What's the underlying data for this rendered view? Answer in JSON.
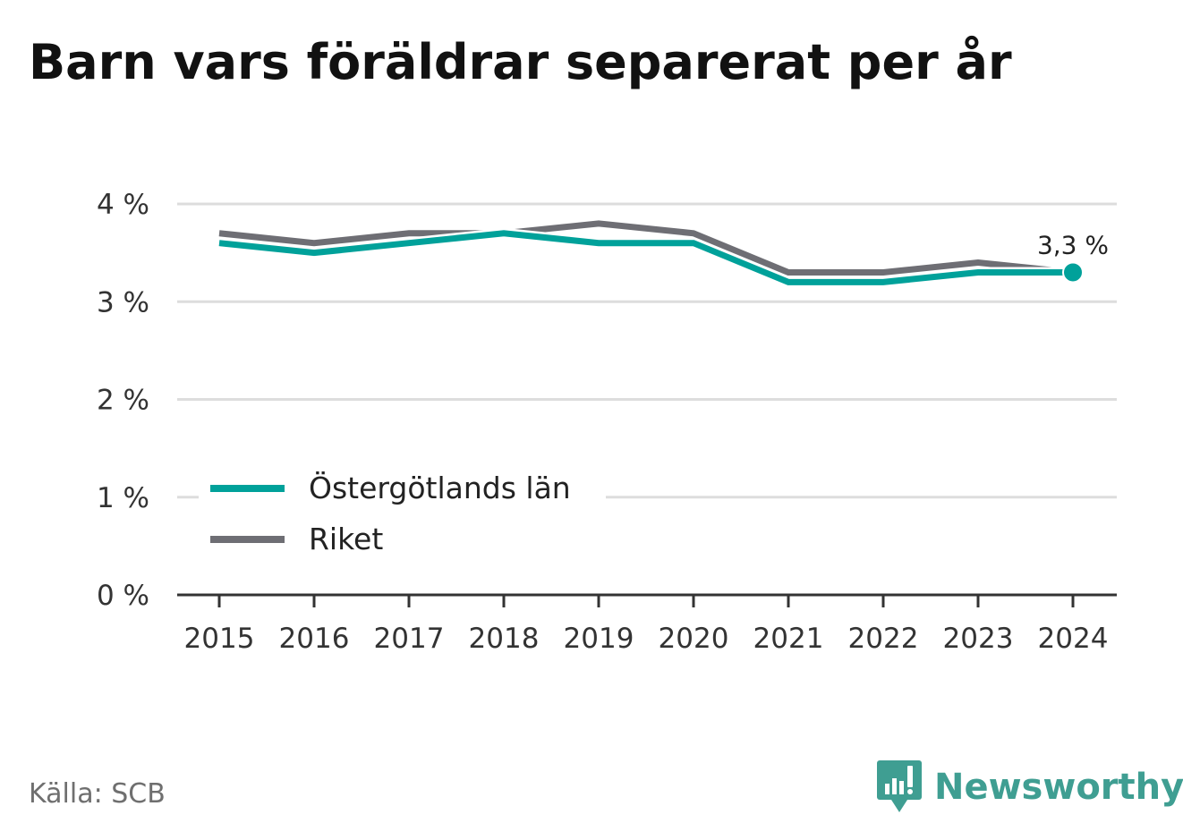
{
  "title": "Barn vars föräldrar separerat per år",
  "source": "Källa: SCB",
  "brand": {
    "name": "Newsworthy",
    "icon": "newsworthy-chart-icon",
    "color": "#3f9e92"
  },
  "colors": {
    "primary": "#00a19a",
    "secondary": "#6e6e74",
    "grid": "#dddddd",
    "axis": "#333333",
    "text": "#333333"
  },
  "chart_data": {
    "type": "line",
    "title": "Barn vars föräldrar separerat per år",
    "x": [
      "2015",
      "2016",
      "2017",
      "2018",
      "2019",
      "2020",
      "2021",
      "2022",
      "2023",
      "2024"
    ],
    "series": [
      {
        "name": "Östergötlands län",
        "color": "#00a19a",
        "values": [
          3.6,
          3.5,
          3.6,
          3.7,
          3.6,
          3.6,
          3.2,
          3.2,
          3.3,
          3.3
        ]
      },
      {
        "name": "Riket",
        "color": "#6e6e74",
        "values": [
          3.7,
          3.6,
          3.7,
          3.7,
          3.8,
          3.7,
          3.3,
          3.3,
          3.4,
          3.3
        ]
      }
    ],
    "ylim": [
      0,
      4
    ],
    "yticks": [
      0,
      1,
      2,
      3,
      4
    ],
    "ytick_labels": [
      "0 %",
      "1 %",
      "2 %",
      "3 %",
      "4 %"
    ],
    "grid": true,
    "legend_position": "bottom-left",
    "annotation": {
      "series": "Östergötlands län",
      "x": "2024",
      "value": 3.3,
      "label": "3,3 %"
    }
  }
}
